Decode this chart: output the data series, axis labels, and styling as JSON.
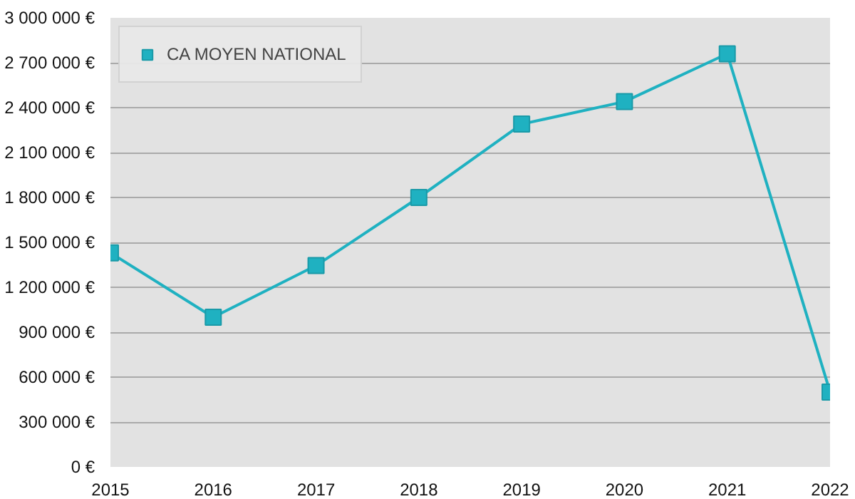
{
  "chart_data": {
    "type": "line",
    "x": [
      2015,
      2016,
      2017,
      2018,
      2019,
      2020,
      2021,
      2022
    ],
    "series": [
      {
        "name": "CA MOYEN NATIONAL",
        "color": "#1fb1c1",
        "values": [
          1430000,
          1000000,
          1345000,
          1800000,
          2290000,
          2440000,
          2760000,
          500000
        ]
      }
    ],
    "xlim": [
      2015,
      2022
    ],
    "xticks": [
      2015,
      2016,
      2017,
      2018,
      2019,
      2020,
      2021,
      2022
    ],
    "ylim": [
      0,
      3000000
    ],
    "yticks": [
      {
        "value": 0,
        "label": "0 €"
      },
      {
        "value": 300000,
        "label": "300 000 €"
      },
      {
        "value": 600000,
        "label": "600 000 €"
      },
      {
        "value": 900000,
        "label": "900 000 €"
      },
      {
        "value": 1200000,
        "label": "1 200 000 €"
      },
      {
        "value": 1500000,
        "label": "1 500 000 €"
      },
      {
        "value": 1800000,
        "label": "1 800 000 €"
      },
      {
        "value": 2100000,
        "label": "2 100 000 €"
      },
      {
        "value": 2400000,
        "label": "2 400 000 €"
      },
      {
        "value": 2700000,
        "label": "2 700 000 €"
      },
      {
        "value": 3000000,
        "label": "3 000 000 €"
      }
    ],
    "grid": "y",
    "legend": "top left",
    "marker": "square",
    "line_style": "solid"
  }
}
